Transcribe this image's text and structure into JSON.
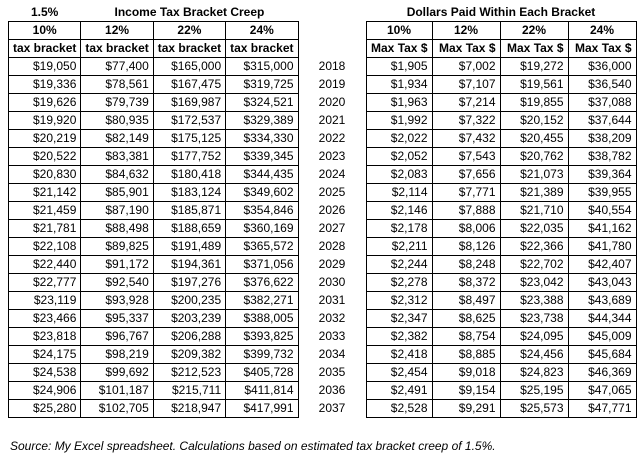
{
  "header": {
    "rate": "1.5%",
    "left_title": "Income Tax Bracket Creep",
    "right_title": "Dollars Paid Within Each Bracket"
  },
  "left_headers": [
    [
      "10%",
      "tax bracket"
    ],
    [
      "12%",
      "tax bracket"
    ],
    [
      "22%",
      "tax bracket"
    ],
    [
      "24%",
      "tax bracket"
    ]
  ],
  "right_headers": [
    [
      "10%",
      "Max Tax $"
    ],
    [
      "12%",
      "Max Tax $"
    ],
    [
      "22%",
      "Max Tax $"
    ],
    [
      "24%",
      "Max Tax $"
    ]
  ],
  "rows": [
    [
      "$19,050",
      "$77,400",
      "$165,000",
      "$315,000",
      "2018",
      "$1,905",
      "$7,002",
      "$19,272",
      "$36,000"
    ],
    [
      "$19,336",
      "$78,561",
      "$167,475",
      "$319,725",
      "2019",
      "$1,934",
      "$7,107",
      "$19,561",
      "$36,540"
    ],
    [
      "$19,626",
      "$79,739",
      "$169,987",
      "$324,521",
      "2020",
      "$1,963",
      "$7,214",
      "$19,855",
      "$37,088"
    ],
    [
      "$19,920",
      "$80,935",
      "$172,537",
      "$329,389",
      "2021",
      "$1,992",
      "$7,322",
      "$20,152",
      "$37,644"
    ],
    [
      "$20,219",
      "$82,149",
      "$175,125",
      "$334,330",
      "2022",
      "$2,022",
      "$7,432",
      "$20,455",
      "$38,209"
    ],
    [
      "$20,522",
      "$83,381",
      "$177,752",
      "$339,345",
      "2023",
      "$2,052",
      "$7,543",
      "$20,762",
      "$38,782"
    ],
    [
      "$20,830",
      "$84,632",
      "$180,418",
      "$344,435",
      "2024",
      "$2,083",
      "$7,656",
      "$21,073",
      "$39,364"
    ],
    [
      "$21,142",
      "$85,901",
      "$183,124",
      "$349,602",
      "2025",
      "$2,114",
      "$7,771",
      "$21,389",
      "$39,955"
    ],
    [
      "$21,459",
      "$87,190",
      "$185,871",
      "$354,846",
      "2026",
      "$2,146",
      "$7,888",
      "$21,710",
      "$40,554"
    ],
    [
      "$21,781",
      "$88,498",
      "$188,659",
      "$360,169",
      "2027",
      "$2,178",
      "$8,006",
      "$22,035",
      "$41,162"
    ],
    [
      "$22,108",
      "$89,825",
      "$191,489",
      "$365,572",
      "2028",
      "$2,211",
      "$8,126",
      "$22,366",
      "$41,780"
    ],
    [
      "$22,440",
      "$91,172",
      "$194,361",
      "$371,056",
      "2029",
      "$2,244",
      "$8,248",
      "$22,702",
      "$42,407"
    ],
    [
      "$22,777",
      "$92,540",
      "$197,276",
      "$376,622",
      "2030",
      "$2,278",
      "$8,372",
      "$23,042",
      "$43,043"
    ],
    [
      "$23,119",
      "$93,928",
      "$200,235",
      "$382,271",
      "2031",
      "$2,312",
      "$8,497",
      "$23,388",
      "$43,689"
    ],
    [
      "$23,466",
      "$95,337",
      "$203,239",
      "$388,005",
      "2032",
      "$2,347",
      "$8,625",
      "$23,738",
      "$44,344"
    ],
    [
      "$23,818",
      "$96,767",
      "$206,288",
      "$393,825",
      "2033",
      "$2,382",
      "$8,754",
      "$24,095",
      "$45,009"
    ],
    [
      "$24,175",
      "$98,219",
      "$209,382",
      "$399,732",
      "2034",
      "$2,418",
      "$8,885",
      "$24,456",
      "$45,684"
    ],
    [
      "$24,538",
      "$99,692",
      "$212,523",
      "$405,728",
      "2035",
      "$2,454",
      "$9,018",
      "$24,823",
      "$46,369"
    ],
    [
      "$24,906",
      "$101,187",
      "$215,711",
      "$411,814",
      "2036",
      "$2,491",
      "$9,154",
      "$25,195",
      "$47,065"
    ],
    [
      "$25,280",
      "$102,705",
      "$218,947",
      "$417,991",
      "2037",
      "$2,528",
      "$9,291",
      "$25,573",
      "$47,771"
    ]
  ],
  "footer": "Source: My Excel spreadsheet.  Calculations based on estimated tax bracket creep of 1.5%."
}
